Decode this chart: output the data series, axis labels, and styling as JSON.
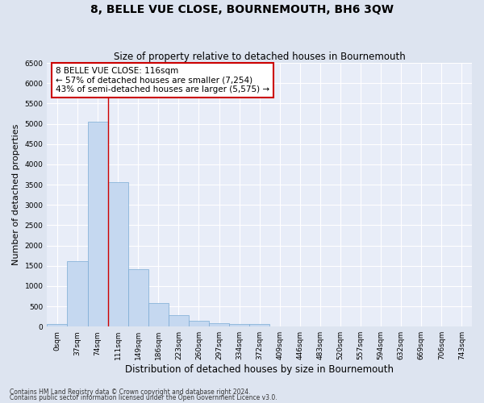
{
  "title": "8, BELLE VUE CLOSE, BOURNEMOUTH, BH6 3QW",
  "subtitle": "Size of property relative to detached houses in Bournemouth",
  "xlabel": "Distribution of detached houses by size in Bournemouth",
  "ylabel": "Number of detached properties",
  "footnote1": "Contains HM Land Registry data © Crown copyright and database right 2024.",
  "footnote2": "Contains public sector information licensed under the Open Government Licence v3.0.",
  "bar_labels": [
    "0sqm",
    "37sqm",
    "74sqm",
    "111sqm",
    "149sqm",
    "186sqm",
    "223sqm",
    "260sqm",
    "297sqm",
    "334sqm",
    "372sqm",
    "409sqm",
    "446sqm",
    "483sqm",
    "520sqm",
    "557sqm",
    "594sqm",
    "632sqm",
    "669sqm",
    "706sqm",
    "743sqm"
  ],
  "bar_values": [
    60,
    1620,
    5060,
    3570,
    1410,
    580,
    290,
    140,
    90,
    65,
    55,
    0,
    0,
    0,
    0,
    0,
    0,
    0,
    0,
    0,
    0
  ],
  "bar_color": "#c5d8f0",
  "bar_edge_color": "#7aaad4",
  "annotation_text": "8 BELLE VUE CLOSE: 116sqm\n← 57% of detached houses are smaller (7,254)\n43% of semi-detached houses are larger (5,575) →",
  "annotation_box_color": "#ffffff",
  "annotation_box_edge": "#cc0000",
  "vline_color": "#cc0000",
  "vline_x": 2.5,
  "ylim": [
    0,
    6500
  ],
  "yticks": [
    0,
    500,
    1000,
    1500,
    2000,
    2500,
    3000,
    3500,
    4000,
    4500,
    5000,
    5500,
    6000,
    6500
  ],
  "bg_color": "#dde4f0",
  "plot_bg_color": "#e8edf8",
  "grid_color": "#ffffff",
  "title_fontsize": 10,
  "subtitle_fontsize": 8.5,
  "ylabel_fontsize": 8,
  "xlabel_fontsize": 8.5,
  "tick_fontsize": 6.5,
  "annotation_fontsize": 7.5,
  "footnote_fontsize": 5.5
}
